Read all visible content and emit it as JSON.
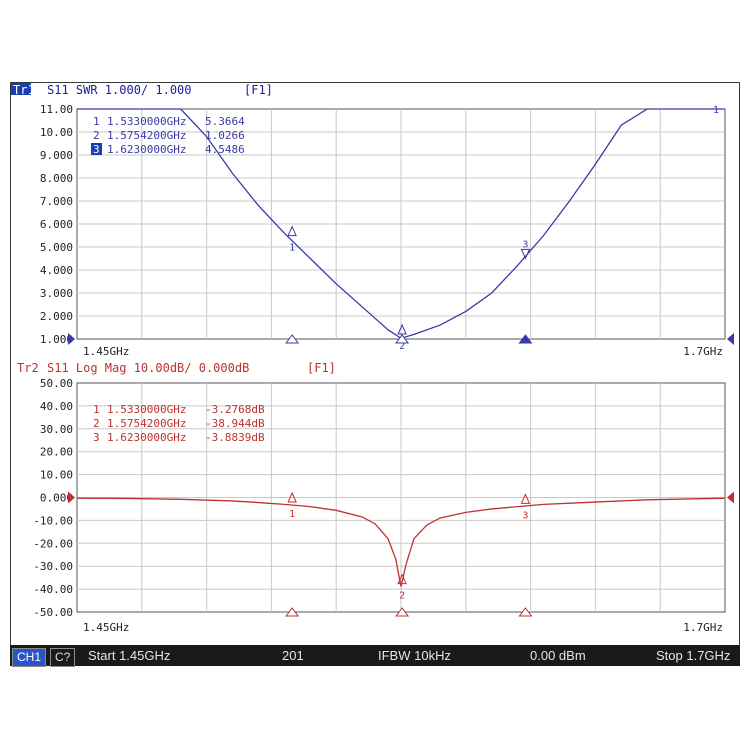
{
  "colors": {
    "trace1": "#3a3aa8",
    "trace2": "#c03030",
    "grid": "#c8c8c8",
    "axis_text": "#222222",
    "statusbar_bg": "#1a1a1a"
  },
  "chart_data": [
    {
      "type": "line",
      "trace_label": "Tr1",
      "header": "S11  SWR 1.000/ 1.000",
      "channel_tag": "[F1]",
      "x_unit": "GHz",
      "xlim": [
        1.45,
        1.7
      ],
      "ylim": [
        1.0,
        11.0
      ],
      "ytick_labels": [
        "11.00",
        "10.00",
        "9.000",
        "8.000",
        "7.000",
        "6.000",
        "5.000",
        "4.000",
        "3.000",
        "2.000",
        "1.000"
      ],
      "x_start_label": "1.45GHz",
      "x_stop_label": "1.7GHz",
      "series": [
        {
          "x": [
            1.45,
            1.46,
            1.47,
            1.48,
            1.49,
            1.5,
            1.51,
            1.52,
            1.53,
            1.54,
            1.55,
            1.56,
            1.57,
            1.575,
            1.58,
            1.59,
            1.6,
            1.61,
            1.62,
            1.63,
            1.64,
            1.65,
            1.66,
            1.67,
            1.68,
            1.69,
            1.7
          ],
          "values": [
            11.0,
            11.0,
            11.0,
            11.0,
            11.0,
            9.8,
            8.2,
            6.8,
            5.6,
            4.5,
            3.4,
            2.4,
            1.4,
            1.03,
            1.2,
            1.6,
            2.2,
            3.0,
            4.2,
            5.5,
            7.0,
            8.6,
            10.3,
            11.0,
            11.0,
            11.0,
            11.0
          ]
        }
      ],
      "markers": [
        {
          "id": "1",
          "label": "1",
          "freq": "1.5330000GHz",
          "value": "5.3664",
          "x": 1.533,
          "y": 5.3664,
          "active": false
        },
        {
          "id": "2",
          "label": "2",
          "freq": "1.5754200GHz",
          "value": "1.0266",
          "x": 1.57542,
          "y": 1.0266,
          "active": false
        },
        {
          "id": "3",
          "label": "3",
          "freq": "1.6230000GHz",
          "value": "4.5486",
          "x": 1.623,
          "y": 4.5486,
          "active": true
        }
      ],
      "ref_marker_label": "1"
    },
    {
      "type": "line",
      "trace_label": "Tr2",
      "header": "S11  Log Mag 10.00dB/ 0.000dB",
      "channel_tag": "[F1]",
      "x_unit": "GHz",
      "xlim": [
        1.45,
        1.7
      ],
      "ylim": [
        -50,
        50
      ],
      "ytick_labels": [
        "50.00",
        "40.00",
        "30.00",
        "20.00",
        "10.00",
        "0.000",
        "-10.00",
        "-20.00",
        "-30.00",
        "-40.00",
        "-50.00"
      ],
      "x_start_label": "1.45GHz",
      "x_stop_label": "1.7GHz",
      "series": [
        {
          "x": [
            1.45,
            1.47,
            1.49,
            1.51,
            1.52,
            1.53,
            1.54,
            1.55,
            1.56,
            1.565,
            1.57,
            1.573,
            1.575,
            1.577,
            1.58,
            1.585,
            1.59,
            1.6,
            1.61,
            1.62,
            1.63,
            1.65,
            1.67,
            1.7
          ],
          "values": [
            -0.3,
            -0.4,
            -0.8,
            -1.5,
            -2.2,
            -3.0,
            -4.0,
            -5.6,
            -8.5,
            -11.5,
            -18.0,
            -27.0,
            -38.9,
            -29.0,
            -18.0,
            -12.0,
            -9.0,
            -6.5,
            -5.0,
            -4.0,
            -3.0,
            -2.0,
            -1.0,
            -0.3
          ]
        }
      ],
      "markers": [
        {
          "id": "1",
          "label": "1",
          "freq": "1.5330000GHz",
          "value": "-3.2768dB",
          "x": 1.533,
          "y": -3.2768
        },
        {
          "id": "2",
          "label": "2",
          "freq": "1.5754200GHz",
          "value": "-38.944dB",
          "x": 1.57542,
          "y": -38.944
        },
        {
          "id": "3",
          "label": "3",
          "freq": "1.6230000GHz",
          "value": "-3.8839dB",
          "x": 1.623,
          "y": -3.8839
        }
      ]
    }
  ],
  "statusbar": {
    "channel": "CH1",
    "c_badge": "C?",
    "start": "Start 1.45GHz",
    "points": "201",
    "ifbw": "IFBW 10kHz",
    "power": "0.00 dBm",
    "stop": "Stop 1.7GHz"
  }
}
